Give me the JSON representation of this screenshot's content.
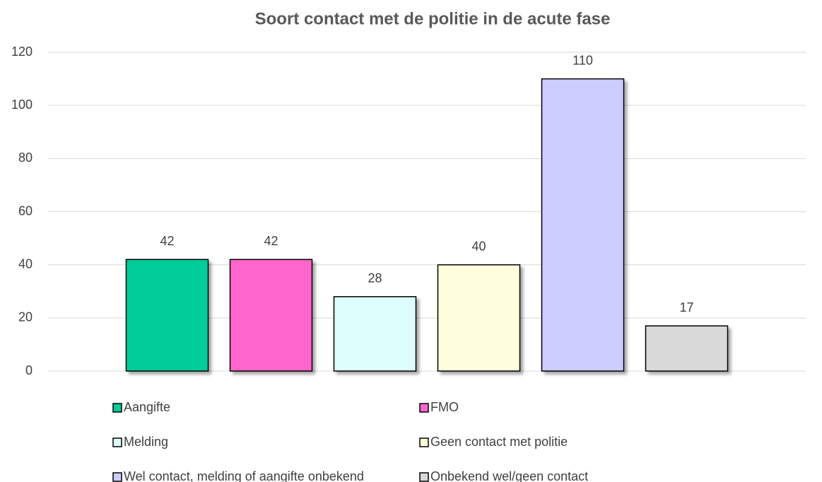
{
  "chart_data": {
    "type": "bar",
    "title": "Soort contact met de politie in de acute fase",
    "series": [
      {
        "name": "Aangifte",
        "color": "#00cc99",
        "values": [
          42
        ]
      },
      {
        "name": "FMO",
        "color": "#ff66cc",
        "values": [
          42
        ]
      },
      {
        "name": "Melding",
        "color": "#ddfcfc",
        "values": [
          28
        ]
      },
      {
        "name": "Geen contact met politie",
        "color": "#ffffdd",
        "values": [
          40
        ]
      },
      {
        "name": "Wel contact, melding of aangifte onbekend",
        "color": "#ccccff",
        "values": [
          110
        ]
      },
      {
        "name": "Onbekend wel/geen contact",
        "color": "#d9d9d9",
        "values": [
          17
        ]
      }
    ],
    "ylim": [
      0,
      120
    ],
    "yticks": [
      0,
      20,
      40,
      60,
      80,
      100,
      120
    ],
    "grid": true,
    "legend": "bottom"
  }
}
